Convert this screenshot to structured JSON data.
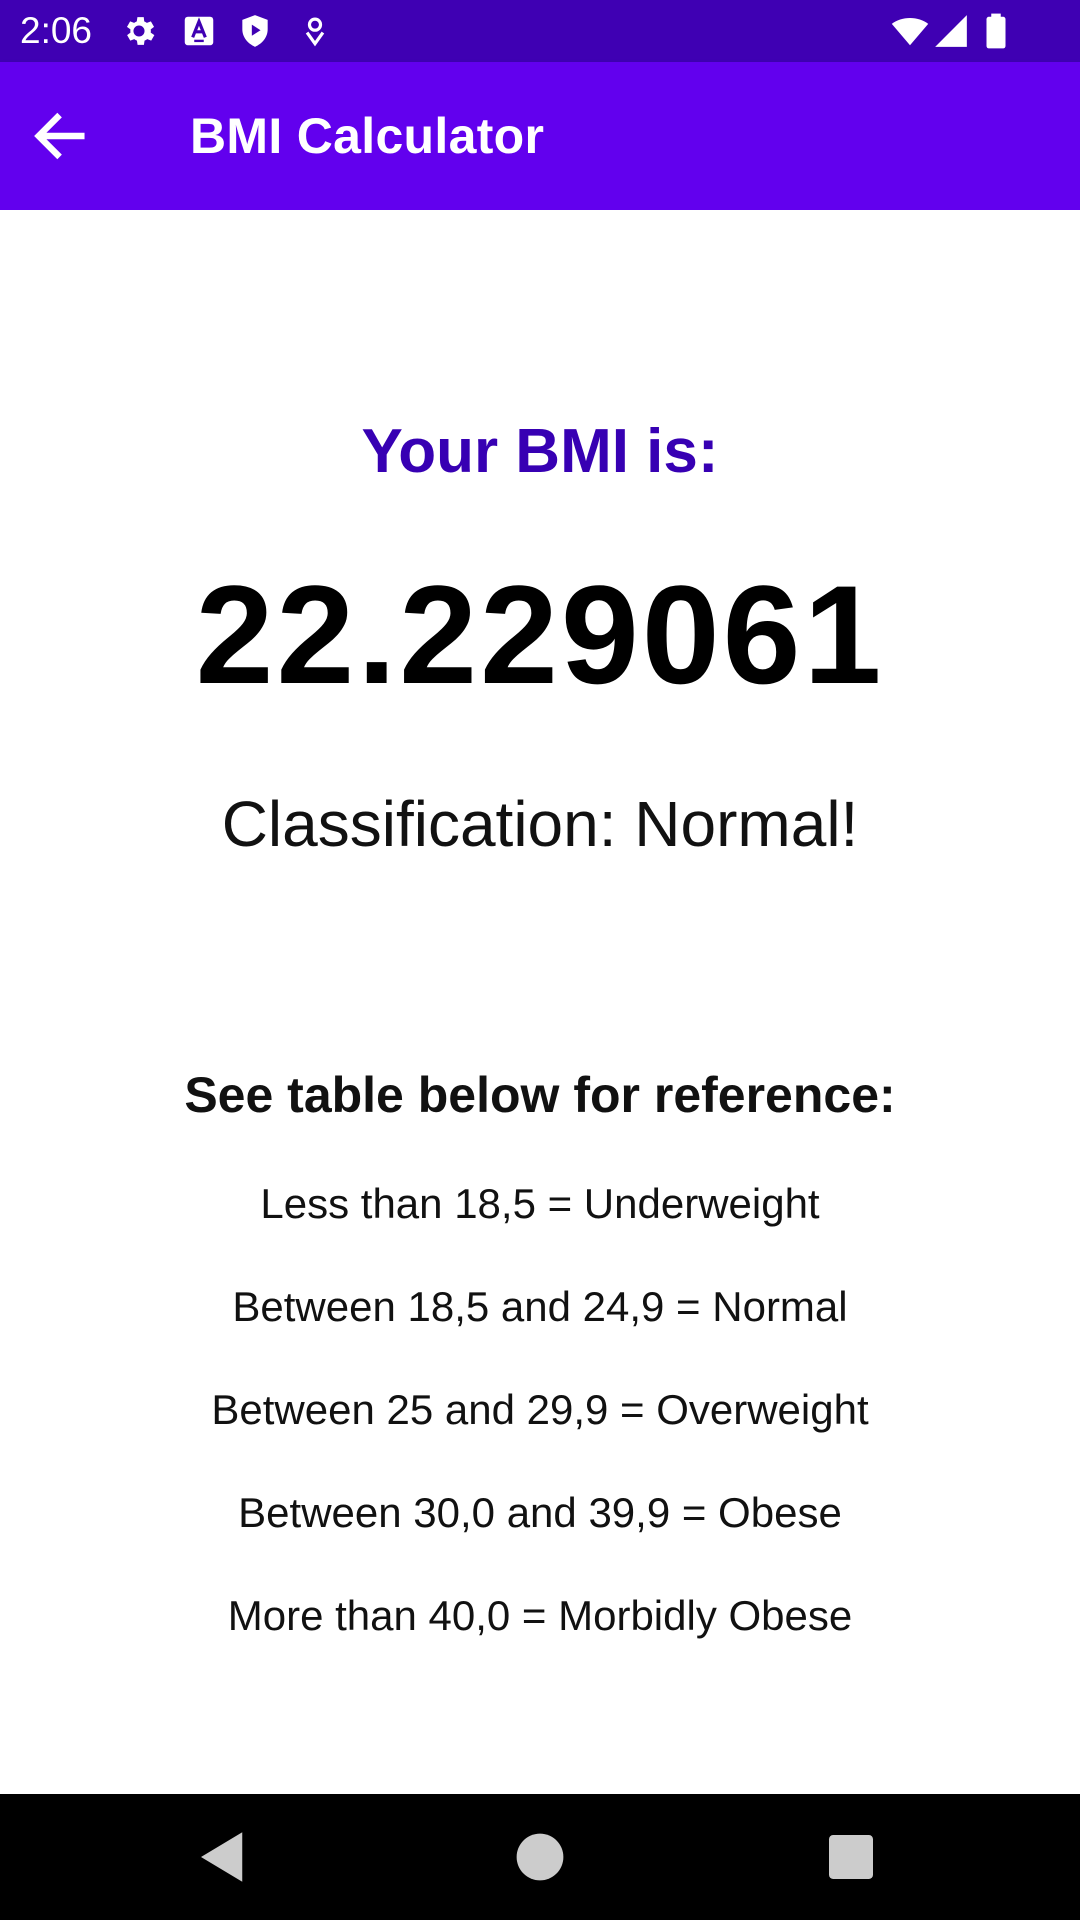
{
  "status_bar": {
    "time": "2:06",
    "left_icons": [
      "settings-gear-icon",
      "a-notification-icon",
      "shield-play-icon",
      "location-drop-icon"
    ],
    "right_icons": [
      "wifi-icon",
      "cell-signal-icon",
      "battery-icon"
    ]
  },
  "app_bar": {
    "title": "BMI Calculator",
    "back_icon": "arrow-back-icon"
  },
  "result": {
    "heading": "Your BMI is:",
    "value": "22.229061",
    "classification": "Classification: Normal!"
  },
  "reference": {
    "heading": "See table below for reference:",
    "items": [
      "Less than 18,5 = Underweight",
      "Between 18,5 and 24,9 = Normal",
      "Between 25 and 29,9 = Overweight",
      "Between 30,0 and 39,9 = Obese",
      "More than 40,0 = Morbidly Obese"
    ]
  },
  "navigation": {
    "buttons": [
      "back-triangle-icon",
      "home-circle-icon",
      "recents-square-icon"
    ]
  },
  "colors": {
    "status_bar": "#3f00b3",
    "app_bar": "#6200ee",
    "heading_accent": "#3700b3",
    "nav_bar": "#000000"
  }
}
